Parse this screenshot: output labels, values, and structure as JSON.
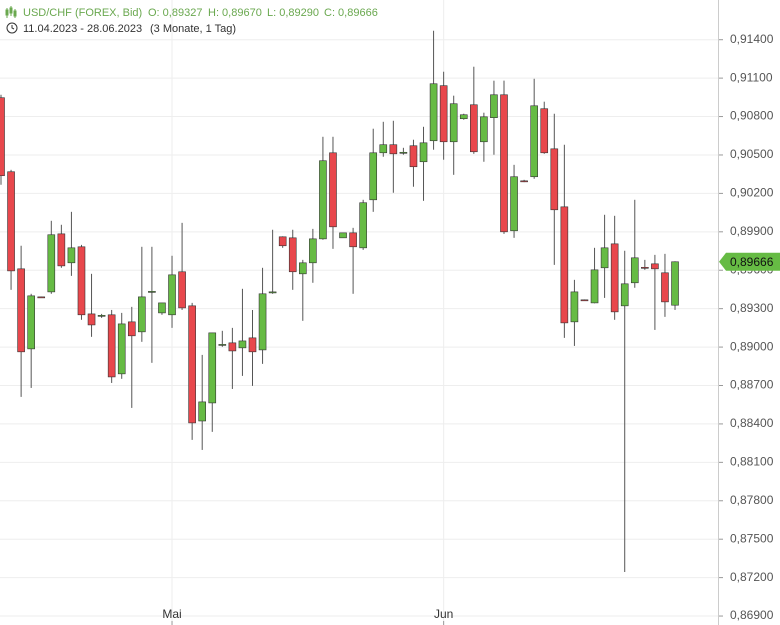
{
  "chart_data": {
    "type": "candlestick",
    "title": "USD/CHF (FOREX, Bid)",
    "ohlc_labels": [
      "O: 0,89327",
      "H: 0,89670",
      "L: 0,89290",
      "C: 0,89666"
    ],
    "date_range": "11.04.2023 - 28.06.2023",
    "period": "(3 Monate, 1 Tag)",
    "categories": [
      null,
      null,
      null,
      null,
      null,
      null,
      null,
      null,
      null,
      null,
      null,
      null,
      null,
      null,
      null,
      null,
      null,
      "Mai",
      null,
      null,
      null,
      null,
      null,
      null,
      null,
      null,
      null,
      null,
      null,
      null,
      null,
      null,
      null,
      null,
      null,
      null,
      null,
      null,
      null,
      null,
      null,
      null,
      null,
      null,
      "Jun",
      null,
      null,
      null,
      null,
      null,
      null,
      null,
      null,
      null,
      null,
      null,
      null,
      null,
      null,
      null,
      null,
      null,
      null,
      null,
      null,
      null,
      null,
      null
    ],
    "open": [
      0.90947,
      0.90369,
      0.89611,
      0.88986,
      0.89392,
      0.89431,
      0.89884,
      0.89658,
      0.89783,
      0.89259,
      0.8924,
      0.89252,
      0.88791,
      0.89197,
      0.89119,
      0.89427,
      0.89267,
      0.89252,
      0.89588,
      0.89322,
      0.88423,
      0.88564,
      0.89013,
      0.89033,
      0.88994,
      0.89072,
      0.88978,
      0.89423,
      0.89861,
      0.89853,
      0.89572,
      0.89658,
      0.89845,
      0.90517,
      0.89853,
      0.89892,
      0.89775,
      0.9015,
      0.90517,
      0.9058,
      0.90513,
      0.90572,
      0.90447,
      0.90611,
      0.91041,
      0.90603,
      0.90783,
      0.90892,
      0.90603,
      0.90791,
      0.9097,
      0.89908,
      0.90298,
      0.9033,
      0.90861,
      0.90548,
      0.90095,
      0.89197,
      0.89369,
      0.89345,
      0.89619,
      0.89806,
      0.89322,
      0.89502,
      0.89623,
      0.8965,
      0.8958,
      0.89327
    ],
    "high": [
      0.9097,
      0.90384,
      0.89791,
      0.89416,
      0.89395,
      0.89986,
      0.89955,
      0.90056,
      0.89798,
      0.89572,
      0.89259,
      0.8929,
      0.89267,
      0.89314,
      0.89783,
      0.89783,
      0.89345,
      0.89713,
      0.8997,
      0.89345,
      0.88939,
      0.89111,
      0.89127,
      0.8915,
      0.89455,
      0.8929,
      0.89619,
      0.89916,
      0.89865,
      0.89916,
      0.89681,
      0.89923,
      0.90642,
      0.90642,
      0.89892,
      0.89931,
      0.9015,
      0.90705,
      0.90759,
      0.90767,
      0.90556,
      0.90619,
      0.9072,
      0.9147,
      0.9115,
      0.90963,
      0.90822,
      0.91189,
      0.9083,
      0.9108,
      0.9108,
      0.90423,
      0.90306,
      0.91095,
      0.90916,
      0.90822,
      0.9058,
      0.89525,
      0.89372,
      0.89775,
      0.90033,
      0.90025,
      0.89752,
      0.9015,
      0.89681,
      0.8972,
      0.89728,
      0.8967
    ],
    "low": [
      0.90267,
      0.89447,
      0.88611,
      0.88681,
      0.8939,
      0.89416,
      0.89619,
      0.89556,
      0.89213,
      0.8908,
      0.89228,
      0.8872,
      0.88752,
      0.88525,
      0.89041,
      0.88877,
      0.89252,
      0.8915,
      0.8929,
      0.88275,
      0.88197,
      0.88338,
      0.89002,
      0.88673,
      0.88775,
      0.88697,
      0.88869,
      0.89416,
      0.89775,
      0.89447,
      0.89205,
      0.89502,
      0.89838,
      0.89767,
      0.89853,
      0.89416,
      0.89759,
      0.90056,
      0.90486,
      0.90205,
      0.90502,
      0.90252,
      0.90142,
      0.90541,
      0.90463,
      0.90345,
      0.90775,
      0.90509,
      0.90447,
      0.90502,
      0.89884,
      0.89853,
      0.90288,
      0.90314,
      0.90509,
      0.89642,
      0.89072,
      0.89009,
      0.89362,
      0.89342,
      0.89384,
      0.89213,
      0.87244,
      0.89463,
      0.89603,
      0.89134,
      0.89236,
      0.8929
    ],
    "close": [
      0.90338,
      0.89595,
      0.88963,
      0.894,
      0.8939,
      0.89877,
      0.89634,
      0.89775,
      0.89252,
      0.89173,
      0.89248,
      0.88767,
      0.89181,
      0.89088,
      0.89392,
      0.89435,
      0.89345,
      0.89564,
      0.89306,
      0.88408,
      0.88572,
      0.89111,
      0.89021,
      0.8897,
      0.89048,
      0.88963,
      0.89416,
      0.89431,
      0.89791,
      0.89588,
      0.89658,
      0.89845,
      0.90455,
      0.89939,
      0.89892,
      0.89783,
      0.90127,
      0.90517,
      0.9058,
      0.90509,
      0.90521,
      0.90408,
      0.90595,
      0.91056,
      0.90603,
      0.909,
      0.90814,
      0.90525,
      0.90798,
      0.9097,
      0.899,
      0.9033,
      0.90291,
      0.90884,
      0.90517,
      0.90072,
      0.89189,
      0.89431,
      0.89365,
      0.89603,
      0.89775,
      0.89275,
      0.89494,
      0.89697,
      0.89615,
      0.89611,
      0.89353,
      0.89666
    ],
    "up_color": "#66bb44",
    "down_color": "#e8474c",
    "ylim": [
      0.8683,
      0.9171
    ],
    "yticks": [
      {
        "value": 0.914,
        "label": "0,91400"
      },
      {
        "value": 0.911,
        "label": "0,91100"
      },
      {
        "value": 0.908,
        "label": "0,90800"
      },
      {
        "value": 0.905,
        "label": "0,90500"
      },
      {
        "value": 0.902,
        "label": "0,90200"
      },
      {
        "value": 0.899,
        "label": "0,89900"
      },
      {
        "value": 0.896,
        "label": "0,89600"
      },
      {
        "value": 0.893,
        "label": "0,89300"
      },
      {
        "value": 0.89,
        "label": "0,89000"
      },
      {
        "value": 0.887,
        "label": "0,88700"
      },
      {
        "value": 0.884,
        "label": "0,88400"
      },
      {
        "value": 0.881,
        "label": "0,88100"
      },
      {
        "value": 0.878,
        "label": "0,87800"
      },
      {
        "value": 0.875,
        "label": "0,87500"
      },
      {
        "value": 0.872,
        "label": "0,87200"
      },
      {
        "value": 0.869,
        "label": "0,86900"
      }
    ],
    "current_price": {
      "value": 0.89666,
      "label": "0,89666"
    },
    "grid": true
  }
}
